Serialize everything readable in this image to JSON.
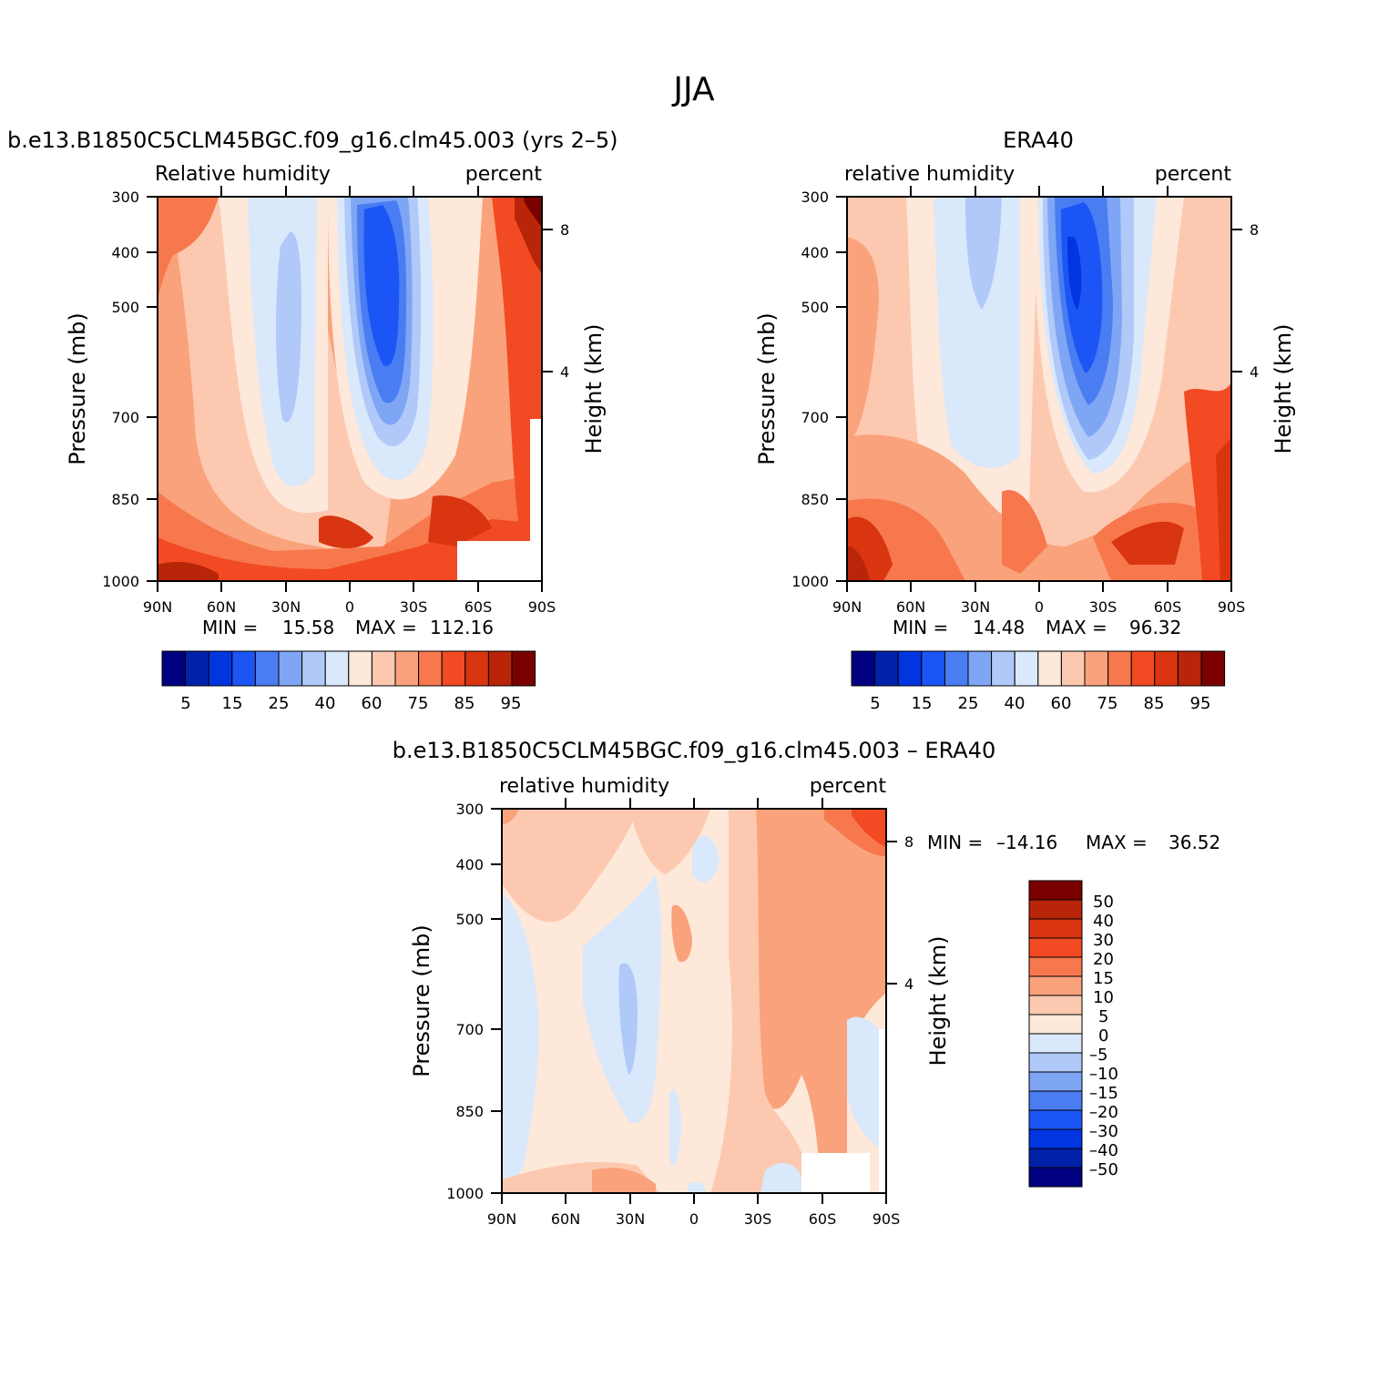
{
  "page_title": "JJA",
  "palettes": {
    "abs": [
      "#000080",
      "#0022aa",
      "#0035e0",
      "#1b55f5",
      "#4a7cf2",
      "#7fa5f5",
      "#b0c9f8",
      "#d9e8fb",
      "#fde8da",
      "#fcc9b0",
      "#faa27b",
      "#f8784e",
      "#f24a23",
      "#d93510",
      "#b82508",
      "#7a0000"
    ],
    "diff": [
      "#000080",
      "#0022aa",
      "#0035e0",
      "#1b55f5",
      "#4a7cf2",
      "#7fa5f5",
      "#b0c9f8",
      "#d9e8fb",
      "#fde8da",
      "#fcc9b0",
      "#faa27b",
      "#f8784e",
      "#f24a23",
      "#d93510",
      "#b82508",
      "#7a0000"
    ]
  },
  "chart_data": [
    {
      "type": "heatmap",
      "title": "b.e13.B1850C5CLM45BGC.f09_g16.clm45.003 (yrs 2–5)",
      "left_label": "Relative  humidity",
      "right_label": "percent",
      "ylabel": "Pressure  (mb)",
      "y2label": "Height  (km)",
      "x_ticks": [
        "90N",
        "60N",
        "30N",
        "0",
        "30S",
        "60S",
        "90S"
      ],
      "y_ticks": [
        "300",
        "400",
        "500",
        "700",
        "850",
        "1000"
      ],
      "y2_ticks": [
        "8",
        "4"
      ],
      "min_label": "MIN  =",
      "min_value": "15.58",
      "max_label": "MAX  =",
      "max_value": "112.16",
      "colorbar_labels": [
        "5",
        "15",
        "25",
        "40",
        "60",
        "75",
        "85",
        "95"
      ],
      "missing_region": "lower-right (near surface, 60S–90S)"
    },
    {
      "type": "heatmap",
      "title": "ERA40",
      "left_label": "relative  humidity",
      "right_label": "percent",
      "ylabel": "Pressure  (mb)",
      "y2label": "Height  (km)",
      "x_ticks": [
        "90N",
        "60N",
        "30N",
        "0",
        "30S",
        "60S",
        "90S"
      ],
      "y_ticks": [
        "300",
        "400",
        "500",
        "700",
        "850",
        "1000"
      ],
      "y2_ticks": [
        "8",
        "4"
      ],
      "min_label": "MIN  =",
      "min_value": "14.48",
      "max_label": "MAX  =",
      "max_value": "96.32",
      "colorbar_labels": [
        "5",
        "15",
        "25",
        "40",
        "60",
        "75",
        "85",
        "95"
      ]
    },
    {
      "type": "heatmap",
      "title": "b.e13.B1850C5CLM45BGC.f09_g16.clm45.003  –  ERA40",
      "left_label": "relative  humidity",
      "right_label": "percent",
      "ylabel": "Pressure  (mb)",
      "y2label": "Height  (km)",
      "x_ticks": [
        "90N",
        "60N",
        "30N",
        "0",
        "30S",
        "60S",
        "90S"
      ],
      "y_ticks": [
        "300",
        "400",
        "500",
        "700",
        "850",
        "1000"
      ],
      "y2_ticks": [
        "8",
        "4"
      ],
      "min_label": "MIN  =",
      "min_value": "–14.16",
      "max_label": "MAX  =",
      "max_value": "36.52",
      "colorbar_labels": [
        "50",
        "40",
        "30",
        "20",
        "15",
        "10",
        "5",
        "0",
        "–5",
        "–10",
        "–15",
        "–20",
        "–30",
        "–40",
        "–50"
      ]
    }
  ]
}
